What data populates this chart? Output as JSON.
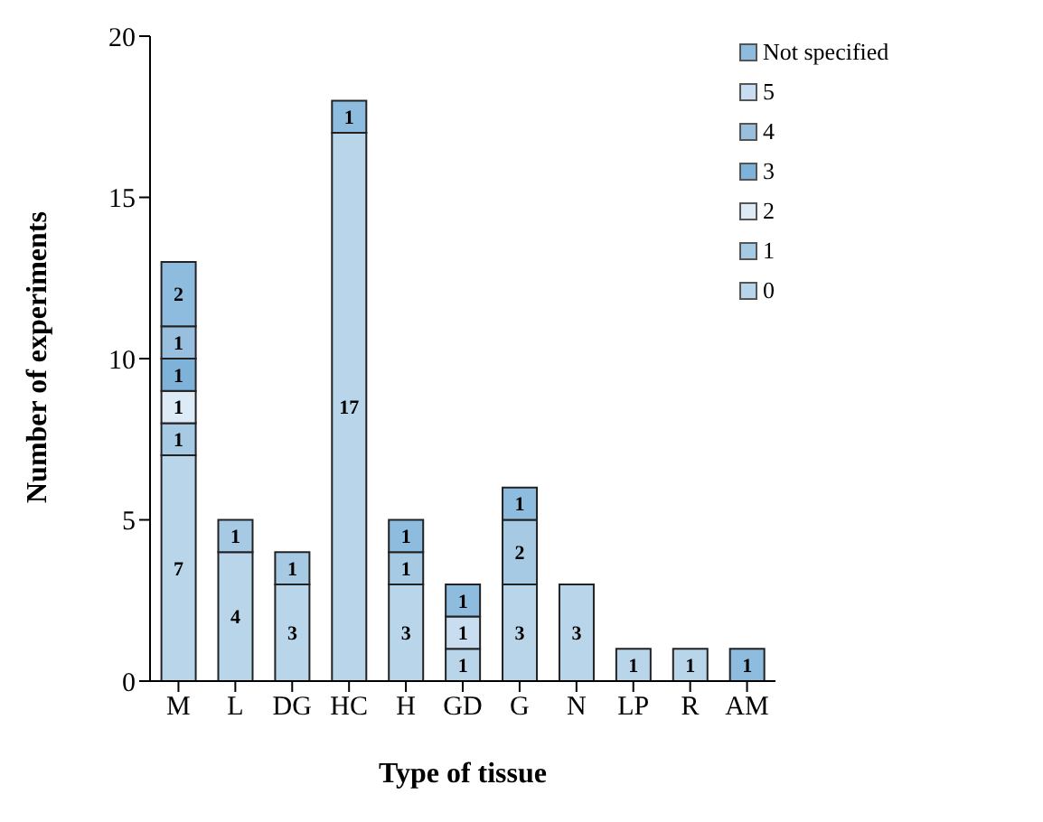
{
  "chart_data": {
    "type": "bar",
    "stacked": true,
    "xlabel": "Type of tissue",
    "ylabel": "Number of experiments",
    "categories": [
      "M",
      "L",
      "DG",
      "HC",
      "H",
      "GD",
      "G",
      "N",
      "LP",
      "R",
      "AM"
    ],
    "series": [
      {
        "name": "0",
        "color": "#b9d5ea",
        "values": [
          7,
          4,
          3,
          17,
          3,
          1,
          3,
          3,
          1,
          1,
          null
        ]
      },
      {
        "name": "1",
        "color": "#a6cae4",
        "values": [
          1,
          1,
          1,
          null,
          1,
          null,
          2,
          null,
          null,
          null,
          null
        ]
      },
      {
        "name": "2",
        "color": "#dcebf6",
        "values": [
          1,
          null,
          null,
          null,
          null,
          null,
          null,
          null,
          null,
          null,
          null
        ]
      },
      {
        "name": "3",
        "color": "#7fb2d8",
        "values": [
          1,
          null,
          null,
          null,
          null,
          null,
          null,
          null,
          null,
          null,
          null
        ]
      },
      {
        "name": "4",
        "color": "#98c0de",
        "values": [
          1,
          null,
          null,
          null,
          null,
          null,
          null,
          null,
          null,
          null,
          null
        ]
      },
      {
        "name": "5",
        "color": "#c8def0",
        "values": [
          null,
          null,
          null,
          null,
          null,
          1,
          null,
          null,
          null,
          null,
          null
        ]
      },
      {
        "name": "Not specified",
        "color": "#8ebcdf",
        "values": [
          2,
          null,
          null,
          1,
          1,
          1,
          1,
          null,
          null,
          null,
          1
        ]
      }
    ],
    "ylim": [
      0,
      20
    ],
    "yticks": [
      0,
      5,
      10,
      15,
      20
    ],
    "grid": false,
    "legend": "top right",
    "data_labels": true
  }
}
